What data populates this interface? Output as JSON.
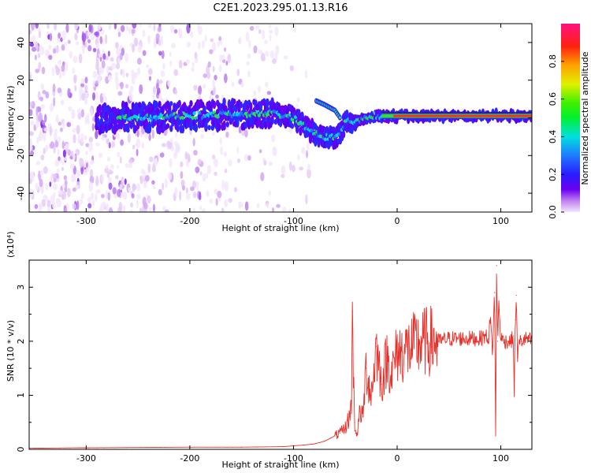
{
  "title": "C2E1.2023.295.01.13.R16",
  "chart_data": [
    {
      "type": "heatmap",
      "name": "spectrogram",
      "xlabel": "Height of straight line (km)",
      "ylabel": "Frequency (Hz)",
      "xlim": [
        -355,
        130
      ],
      "ylim": [
        -50,
        50
      ],
      "xticks": [
        -300,
        -200,
        -100,
        0,
        100
      ],
      "yticks": [
        -40,
        -20,
        0,
        20,
        40
      ],
      "colorbar": {
        "label": "Normalized spectral amplitude",
        "range": [
          0,
          1
        ],
        "ticks": [
          "0.0",
          "0.2",
          "0.4",
          "0.6",
          "0.8"
        ],
        "tick_values": [
          0.0,
          0.2,
          0.4,
          0.6,
          0.8
        ]
      },
      "ridge": {
        "x": [
          -280,
          -250,
          -200,
          -150,
          -120,
          -100,
          -90,
          -80,
          -70,
          -60,
          -55,
          -50,
          -45,
          -40,
          -30,
          -20,
          -10,
          0,
          20,
          50,
          90,
          100,
          130
        ],
        "frequency": [
          0,
          0,
          1,
          2,
          3,
          0,
          -4,
          -8,
          -10,
          -10,
          -9,
          -2,
          -2,
          -2,
          0,
          1,
          1,
          1,
          1,
          1,
          1,
          1,
          1
        ]
      },
      "ridge_branch": {
        "x": [
          -78,
          -70,
          -60,
          -55
        ],
        "frequency": [
          9,
          7,
          4,
          0
        ]
      }
    },
    {
      "type": "line",
      "name": "snr",
      "xlabel": "Height of straight line (km)",
      "ylabel": "SNR (10 * v/v)",
      "multiplier": "(x10⁴)",
      "xlim": [
        -355,
        130
      ],
      "ylim": [
        0,
        3.5
      ],
      "xticks": [
        -300,
        -200,
        -100,
        0,
        100
      ],
      "yticks": [
        0,
        1,
        2,
        3
      ],
      "series": [
        {
          "color": "#e8302a",
          "x": [
            -355,
            -300,
            -200,
            -150,
            -110,
            -90,
            -80,
            -70,
            -60,
            -55,
            -50,
            -46,
            -44,
            -43,
            -42,
            -41,
            -40,
            -38,
            -36,
            -33,
            -30,
            -25,
            -20,
            -15,
            -10,
            -5,
            0,
            5,
            10,
            20,
            30,
            40,
            50,
            60,
            70,
            80,
            85,
            88,
            90,
            92,
            94,
            95,
            96,
            97,
            98,
            100,
            105,
            110,
            112,
            113,
            114,
            115,
            116,
            118,
            120,
            125,
            130
          ],
          "y": [
            0.02,
            0.03,
            0.04,
            0.04,
            0.05,
            0.08,
            0.1,
            0.15,
            0.25,
            0.3,
            0.4,
            0.6,
            0.9,
            2.55,
            1.2,
            0.5,
            0.3,
            0.35,
            0.7,
            0.6,
            1.5,
            1.0,
            1.9,
            1.2,
            1.7,
            1.4,
            1.8,
            1.8,
            1.85,
            1.95,
            2.0,
            2.0,
            2.05,
            2.05,
            2.05,
            2.05,
            2.1,
            2.05,
            2.4,
            1.8,
            2.9,
            0.25,
            3.4,
            2.0,
            2.7,
            2.05,
            2.0,
            2.0,
            2.1,
            1.0,
            2.4,
            2.85,
            1.7,
            2.0,
            2.0,
            2.05,
            2.0
          ]
        }
      ]
    }
  ]
}
